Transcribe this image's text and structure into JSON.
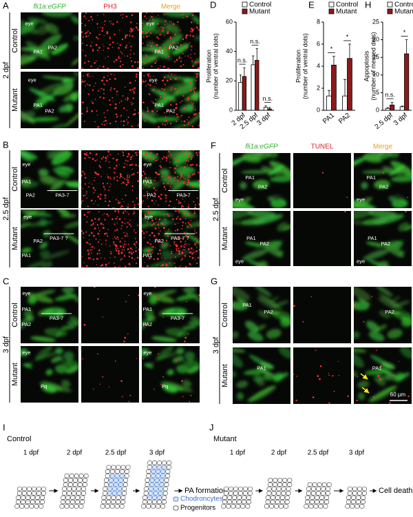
{
  "figure_panels": [
    {
      "letter": "A",
      "stage": "2 dpf",
      "headers": [
        "fli1a:eGFP",
        "PH3",
        "Merge"
      ],
      "rows": [
        {
          "label": "Control",
          "images": [
            [
              "eye",
              "PA1",
              "PA2"
            ],
            [],
            [
              "eye",
              "PA1",
              "PA2"
            ]
          ]
        },
        {
          "label": "Mutant",
          "images": [
            [
              "eye",
              "PA1",
              "PA2"
            ],
            [],
            [
              "eye",
              "PA1",
              "PA2"
            ]
          ]
        }
      ]
    },
    {
      "letter": "B",
      "stage": "2.5 dpf",
      "rows": [
        {
          "label": "Control",
          "images": [
            [
              "eye",
              "PA1",
              "PA2",
              "PA3-7"
            ],
            [],
            [
              "eye",
              "PA1",
              "PA2",
              "PA3-7"
            ]
          ]
        },
        {
          "label": "Mutant",
          "images": [
            [
              "eye",
              "PA2",
              "PA1",
              "PA3-7 ?"
            ],
            [],
            [
              "eye",
              "PA2",
              "PA1",
              "PA3-7 ?"
            ]
          ]
        }
      ]
    },
    {
      "letter": "C",
      "stage": "3 dpf",
      "rows": [
        {
          "label": "Control",
          "images": [
            [
              "eye",
              "PA1",
              "PA2",
              "PA3-7"
            ],
            [],
            [
              "eye",
              "PA1",
              "PA2",
              "PA3-7"
            ]
          ]
        },
        {
          "label": "Mutant",
          "images": [
            [
              "eye",
              "Pq"
            ],
            [],
            [
              "eye",
              "Pq"
            ]
          ]
        }
      ]
    },
    {
      "letter": "F",
      "stage": "2.5 dpf",
      "headers": [
        "fli1a:eGFP",
        "TUNEL",
        "Merge"
      ],
      "rows": [
        {
          "label": "Control",
          "images": [
            [
              "PA1",
              "PA2",
              "eye"
            ],
            [],
            [
              "PA1",
              "PA2",
              "eye"
            ]
          ]
        },
        {
          "label": "Mutant",
          "images": [
            [
              "PA1",
              "PA2",
              "eye"
            ],
            [],
            [
              "PA1",
              "PA2",
              "eye"
            ]
          ]
        }
      ]
    },
    {
      "letter": "G",
      "stage": "3 dpf",
      "scale_bar": "60 µm",
      "rows": [
        {
          "label": "Control",
          "images": [
            [
              "PA1",
              "PA2"
            ],
            [],
            [
              "PA2"
            ]
          ]
        },
        {
          "label": "Mutant",
          "images": [
            [
              "PA1"
            ],
            [],
            [
              "PA1"
            ]
          ]
        }
      ]
    }
  ],
  "chart_data": [
    {
      "type": "bar",
      "letter": "D",
      "ylabel": [
        "Proliferation",
        "(number of ventral dots)"
      ],
      "categories": [
        "2 dpf",
        "2.5 dpf",
        "3 dpf"
      ],
      "series": [
        {
          "name": "Control",
          "color": "#ffffff",
          "values": [
            19,
            31,
            2
          ],
          "errors": [
            5,
            6,
            1
          ]
        },
        {
          "name": "Mutant",
          "color": "#8b1a1a",
          "values": [
            23,
            34,
            1
          ],
          "errors": [
            6,
            8,
            1
          ]
        }
      ],
      "annotations": [
        "n.s.",
        "n.s.",
        "n.s."
      ],
      "ylim": [
        0,
        60
      ],
      "yticks": [
        0,
        20,
        40,
        60
      ]
    },
    {
      "type": "bar",
      "letter": "E",
      "ylabel": [
        "Proliferation",
        "(number of ventral dots)"
      ],
      "categories": [
        "PA1",
        "PA2"
      ],
      "series": [
        {
          "name": "Control",
          "color": "#ffffff",
          "values": [
            1.3,
            1.3
          ],
          "errors": [
            0.5,
            1.5
          ]
        },
        {
          "name": "Mutant",
          "color": "#8b1a1a",
          "values": [
            4.1,
            4.7
          ],
          "errors": [
            0.8,
            1.3
          ]
        }
      ],
      "annotations": [
        "*",
        "*"
      ],
      "ylim": [
        0,
        8
      ],
      "yticks": [
        0,
        2,
        4,
        6,
        8
      ]
    },
    {
      "type": "bar",
      "letter": "H",
      "ylabel": [
        "Appoptosis",
        "(number of merged dots)"
      ],
      "categories": [
        "2.5 dpf",
        "3 dpf"
      ],
      "series": [
        {
          "name": "Control",
          "color": "#ffffff",
          "values": [
            0.5,
            1
          ],
          "errors": [
            0.3,
            0.2
          ]
        },
        {
          "name": "Mutant",
          "color": "#8b1a1a",
          "values": [
            1.5,
            16
          ],
          "errors": [
            0.8,
            4
          ]
        }
      ],
      "annotations": [
        "n.s.",
        "*"
      ],
      "ylim": [
        0,
        25
      ],
      "yticks": [
        0,
        5,
        10,
        15,
        20,
        25
      ]
    }
  ],
  "schematics": [
    {
      "letter": "I",
      "title": "Control",
      "stages": [
        "1 dpf",
        "2 dpf",
        "2.5 dpf",
        "3 dpf"
      ],
      "outcome": "PA formation",
      "legend": [
        "Chodroncytes",
        "Progenitors"
      ]
    },
    {
      "letter": "J",
      "title": "Mutant",
      "stages": [
        "1 dpf",
        "2 dpf",
        "2.5 dpf",
        "3 dpf"
      ],
      "outcome": "Cell death"
    }
  ]
}
